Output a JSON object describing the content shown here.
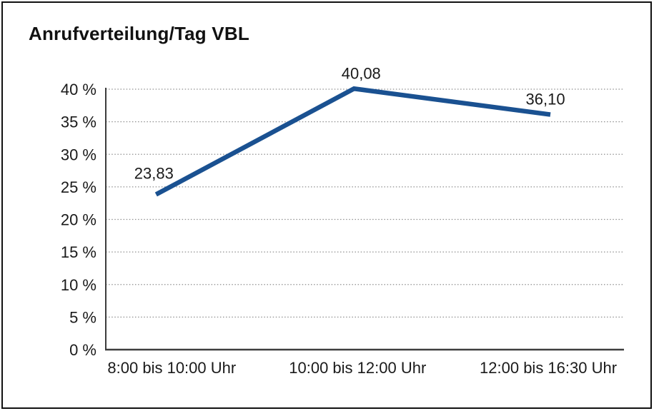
{
  "page": {
    "title": "Anrufverteilung/Tag VBL"
  },
  "chart_data": {
    "type": "line",
    "title": "Anrufverteilung/Tag VBL",
    "categories": [
      "8:00 bis 10:00 Uhr",
      "10:00 bis 12:00 Uhr",
      "12:00 bis 16:30 Uhr"
    ],
    "values": [
      23.83,
      40.08,
      36.1
    ],
    "value_labels": [
      "23,83",
      "40,08",
      "36,10"
    ],
    "unit": "%",
    "xlabel": "",
    "ylabel": "",
    "ylim": [
      0,
      40
    ],
    "y_tick_step": 5,
    "y_tick_values": [
      0,
      5,
      10,
      15,
      20,
      25,
      30,
      35,
      40
    ],
    "y_tick_labels": [
      "0 %",
      "5 %",
      "10 %",
      "15 %",
      "20 %",
      "25 %",
      "30 %",
      "35 %",
      "40 %"
    ],
    "grid": "horizontal-dotted",
    "legend": "none",
    "colors": {
      "line": "#1a5191",
      "text": "#1a1a1a",
      "grid": "#8f8f8f",
      "axis": "#3d3d3d",
      "background": "#ffffff",
      "border": "#111111"
    }
  }
}
